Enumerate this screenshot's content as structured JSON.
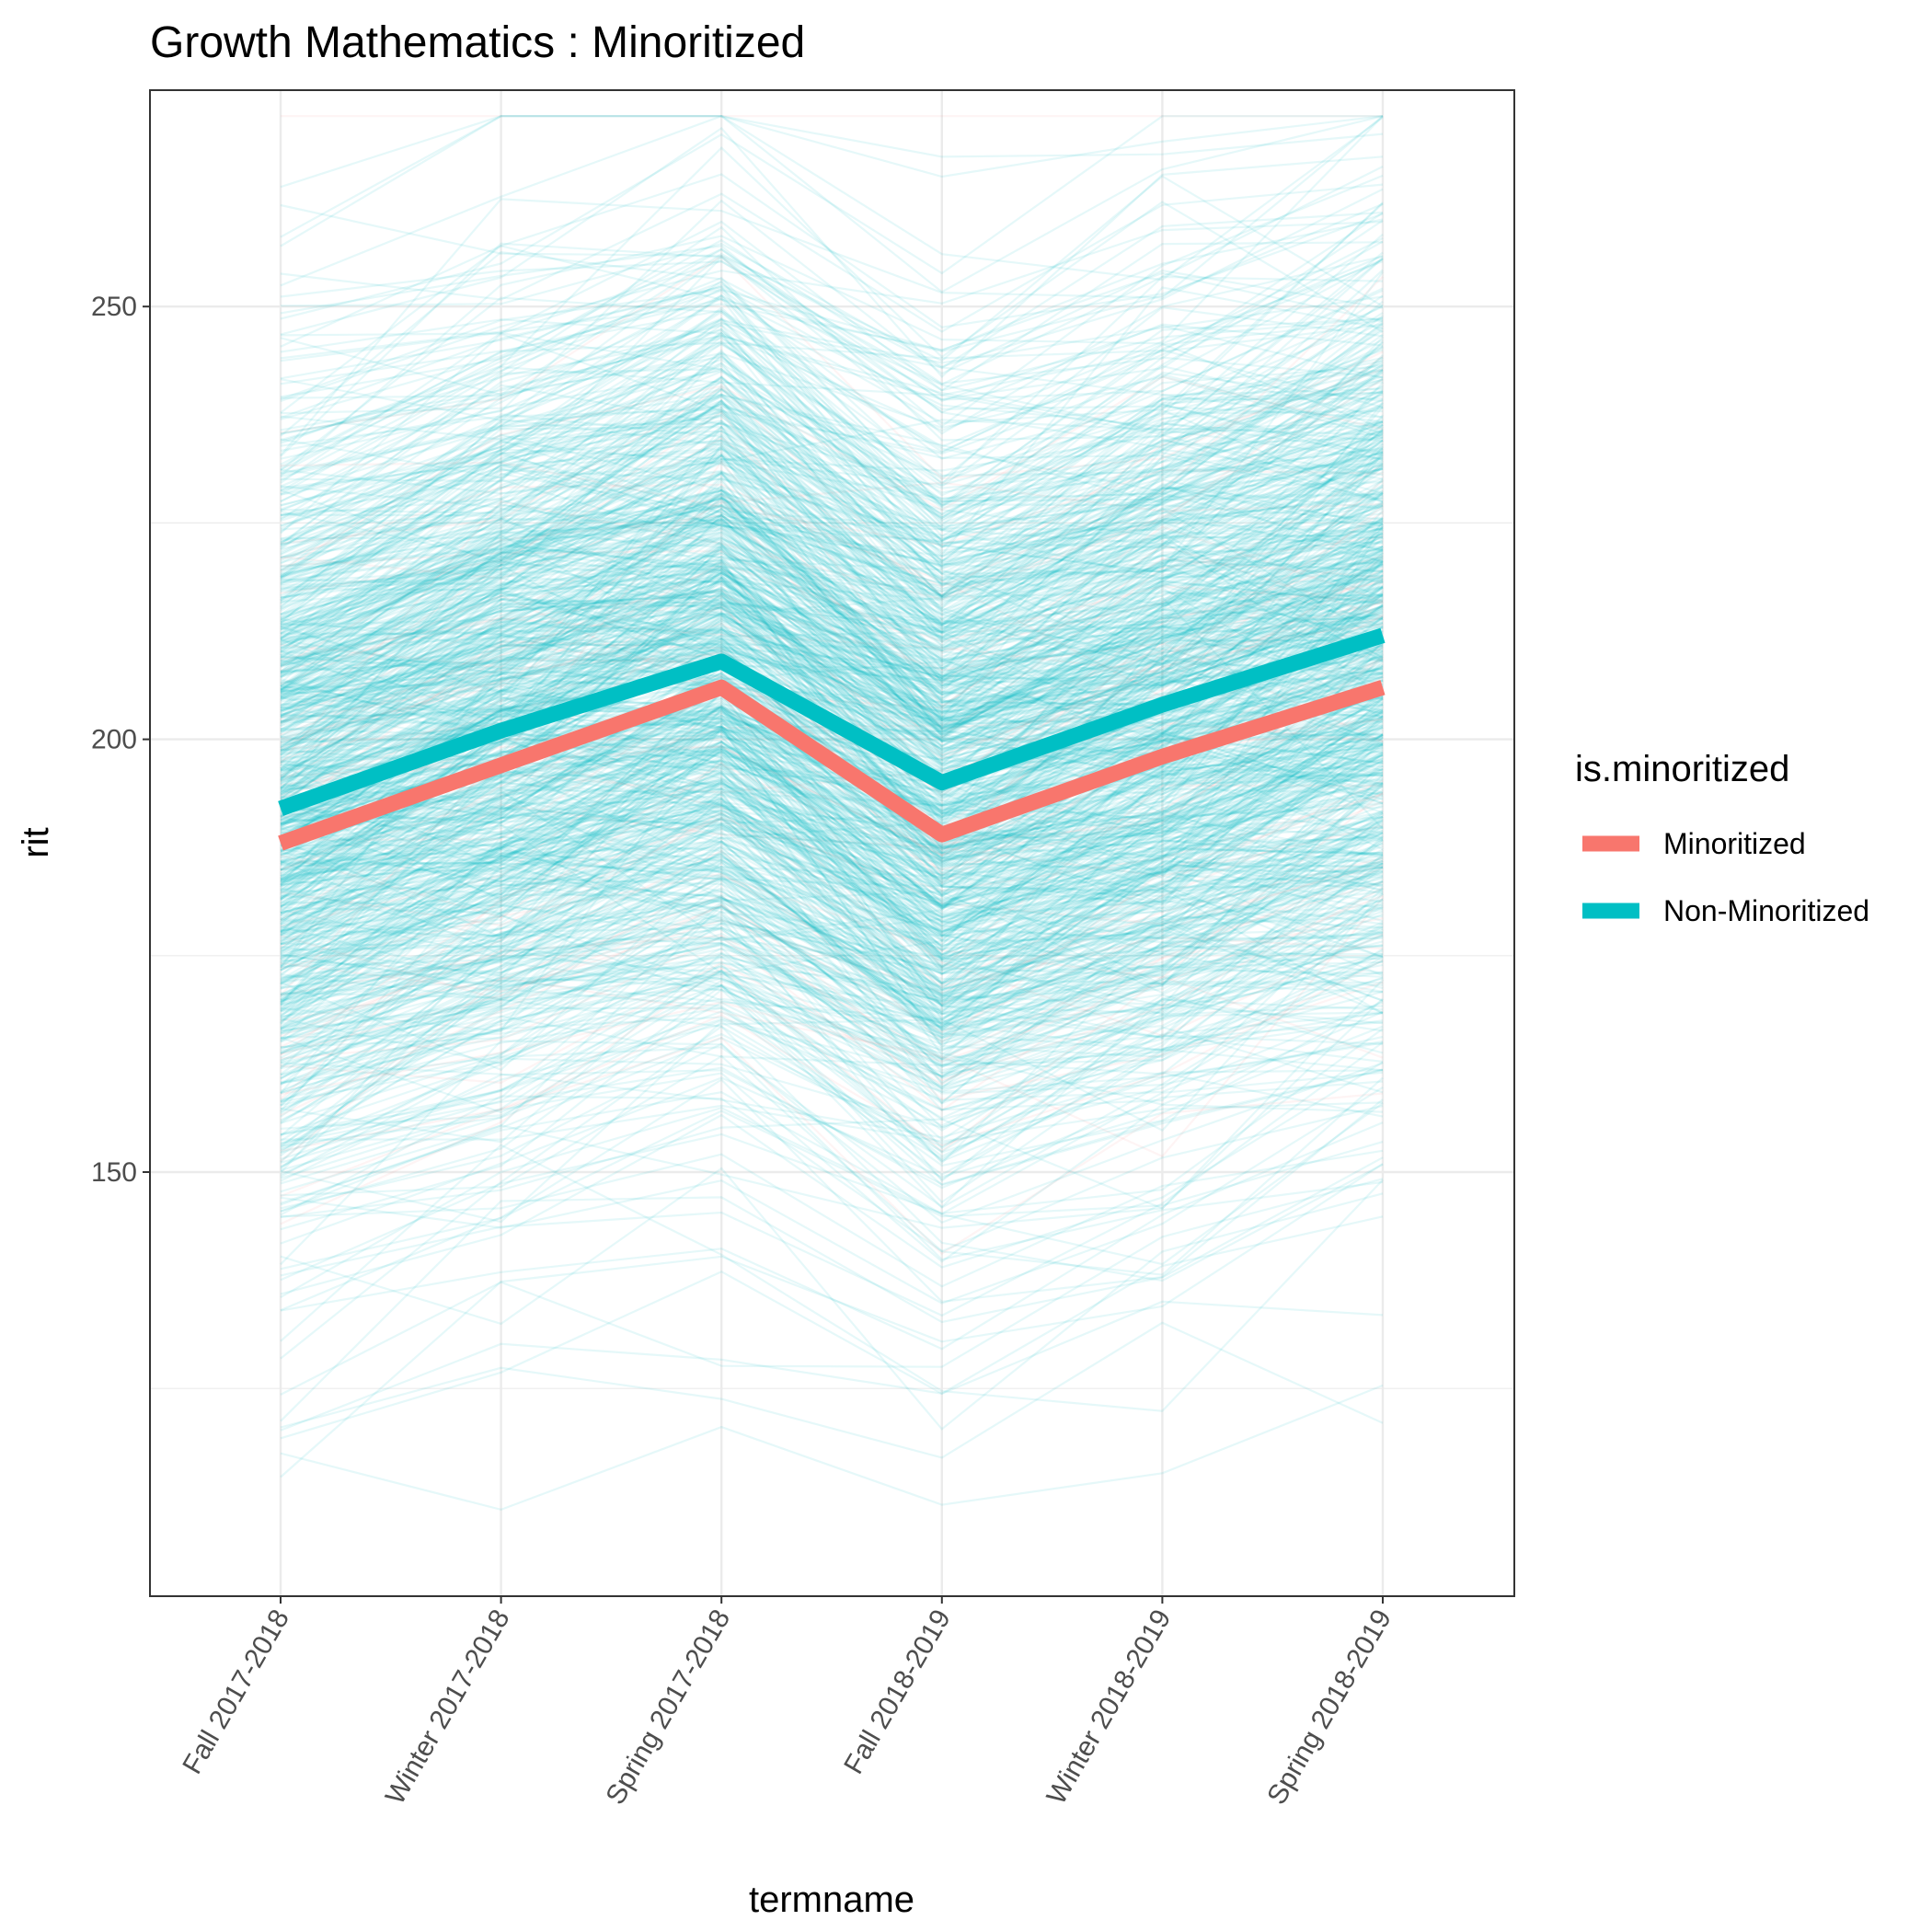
{
  "chart_data": {
    "type": "line",
    "title": "Growth Mathematics : Minoritized",
    "xlabel": "termname",
    "ylabel": "rit",
    "categories": [
      "Fall 2017-2018",
      "Winter 2017-2018",
      "Spring 2017-2018",
      "Fall 2018-2019",
      "Winter 2018-2019",
      "Spring 2018-2019"
    ],
    "ylim": [
      101,
      275
    ],
    "yticks": [
      150,
      200,
      250
    ],
    "grid": true,
    "legend": {
      "title": "is.minoritized",
      "position": "right",
      "entries": [
        {
          "label": "Minoritized",
          "color": "#F8766D"
        },
        {
          "label": "Non-Minoritized",
          "color": "#00BFC4"
        }
      ]
    },
    "series": [
      {
        "name": "Minoritized",
        "color": "#F8766D",
        "values": [
          188,
          197,
          206,
          189,
          198,
          206
        ]
      },
      {
        "name": "Non-Minoritized",
        "color": "#00BFC4",
        "values": [
          192,
          201,
          209,
          195,
          204,
          212
        ]
      }
    ],
    "individual_trajectories": {
      "description_colors": {
        "Minoritized": "#F8766D",
        "Non-Minoritized": "#00BFC4"
      },
      "opacity": 0.1
    }
  }
}
